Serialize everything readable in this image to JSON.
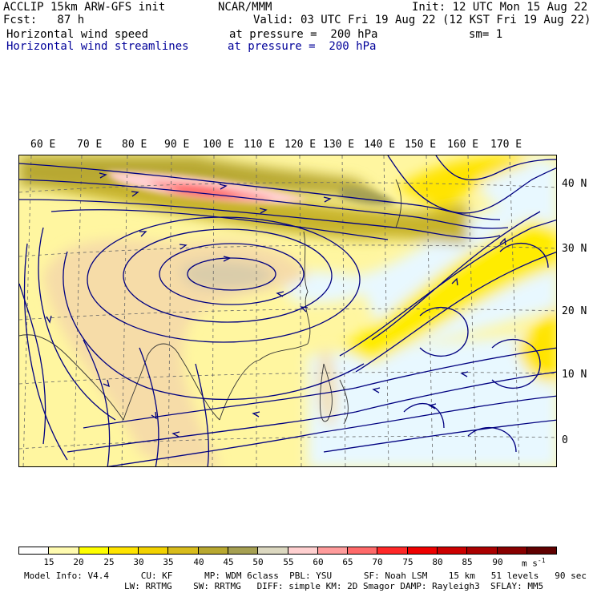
{
  "header": {
    "model": "ACCLIP 15km ARW-GFS init",
    "fcst": "Fcst:   87 h",
    "center": "NCAR/MMM",
    "init": "Init: 12 UTC Mon 15 Aug 22",
    "valid": "Valid: 03 UTC Fri 19 Aug 22 (12 KST Fri 19 Aug 22)",
    "field1": "Horizontal wind speed",
    "field1_level": "at pressure =  200 hPa",
    "smoothing": "sm= 1",
    "field2": "Horizontal wind streamlines",
    "field2_level": "at pressure =  200 hPa"
  },
  "map": {
    "lon_labels": [
      "60 E",
      "70 E",
      "80 E",
      "90 E",
      "100 E",
      "110 E",
      "120 E",
      "130 E",
      "140 E",
      "150 E",
      "160 E",
      "170 E"
    ],
    "lat_labels": [
      "40 N",
      "30 N",
      "20 N",
      "10 N",
      "0"
    ],
    "streamline_color": "#000080"
  },
  "colorbar": {
    "labels": [
      "15",
      "20",
      "25",
      "30",
      "35",
      "40",
      "45",
      "50",
      "55",
      "60",
      "65",
      "70",
      "75",
      "80",
      "85",
      "90"
    ],
    "units": "m s",
    "units_exp": "-1",
    "colors": [
      "#ffffff",
      "#fffbb0",
      "#ffff00",
      "#ffe400",
      "#f2d200",
      "#d8bc1c",
      "#b8a830",
      "#a6a052",
      "#dcd8c0",
      "#ffd0d0",
      "#ff9c9c",
      "#ff6a6a",
      "#ff2828",
      "#ee0000",
      "#cc0000",
      "#aa0000",
      "#880000",
      "#600000"
    ]
  },
  "footer": {
    "line1": "Model Info: V4.4      CU: KF      MP: WDM 6class  PBL: YSU      SF: Noah LSM    15 km   51 levels   90 sec",
    "line2": "LW: RRTMG    SW: RRTMG   DIFF: simple KM: 2D Smagor DAMP: Rayleigh3  SFLAY: MM5"
  }
}
